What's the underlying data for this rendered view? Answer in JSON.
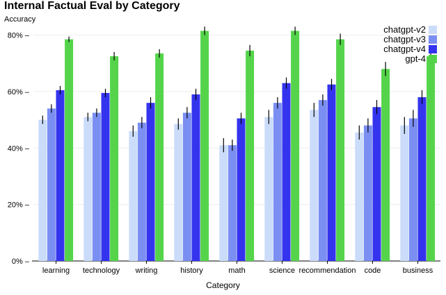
{
  "chart_data": {
    "type": "bar",
    "title": "Internal Factual Eval by Category",
    "ylabel": "Accuracy",
    "xlabel": "Category",
    "ylim": [
      0,
      0.88
    ],
    "yticks": [
      0,
      0.2,
      0.4,
      0.6,
      0.8
    ],
    "ytick_labels": [
      "0% –",
      "20% –",
      "40% –",
      "60% –",
      "80% –"
    ],
    "grid": true,
    "legend_position": "top-right",
    "categories": [
      "learning",
      "technology",
      "writing",
      "history",
      "math",
      "science",
      "recommendation",
      "code",
      "business"
    ],
    "series": [
      {
        "name": "chatgpt-v2",
        "color": "#cbdcfa",
        "values": [
          0.5,
          0.51,
          0.46,
          0.485,
          0.41,
          0.51,
          0.535,
          0.455,
          0.48
        ],
        "errors": [
          0.015,
          0.015,
          0.02,
          0.02,
          0.025,
          0.025,
          0.025,
          0.025,
          0.03
        ]
      },
      {
        "name": "chatgpt-v3",
        "color": "#7b8ff2",
        "values": [
          0.54,
          0.525,
          0.49,
          0.525,
          0.41,
          0.56,
          0.57,
          0.48,
          0.505
        ],
        "errors": [
          0.015,
          0.015,
          0.02,
          0.02,
          0.02,
          0.02,
          0.02,
          0.025,
          0.03
        ]
      },
      {
        "name": "chatgpt-v4",
        "color": "#3434ee",
        "values": [
          0.605,
          0.595,
          0.56,
          0.59,
          0.505,
          0.63,
          0.625,
          0.545,
          0.58
        ],
        "errors": [
          0.015,
          0.015,
          0.02,
          0.02,
          0.02,
          0.02,
          0.02,
          0.025,
          0.025
        ]
      },
      {
        "name": "gpt-4",
        "color": "#55d44b",
        "values": [
          0.785,
          0.725,
          0.735,
          0.815,
          0.745,
          0.815,
          0.785,
          0.68,
          0.725
        ],
        "errors": [
          0.01,
          0.015,
          0.015,
          0.015,
          0.02,
          0.015,
          0.02,
          0.025,
          0.025
        ]
      }
    ]
  }
}
